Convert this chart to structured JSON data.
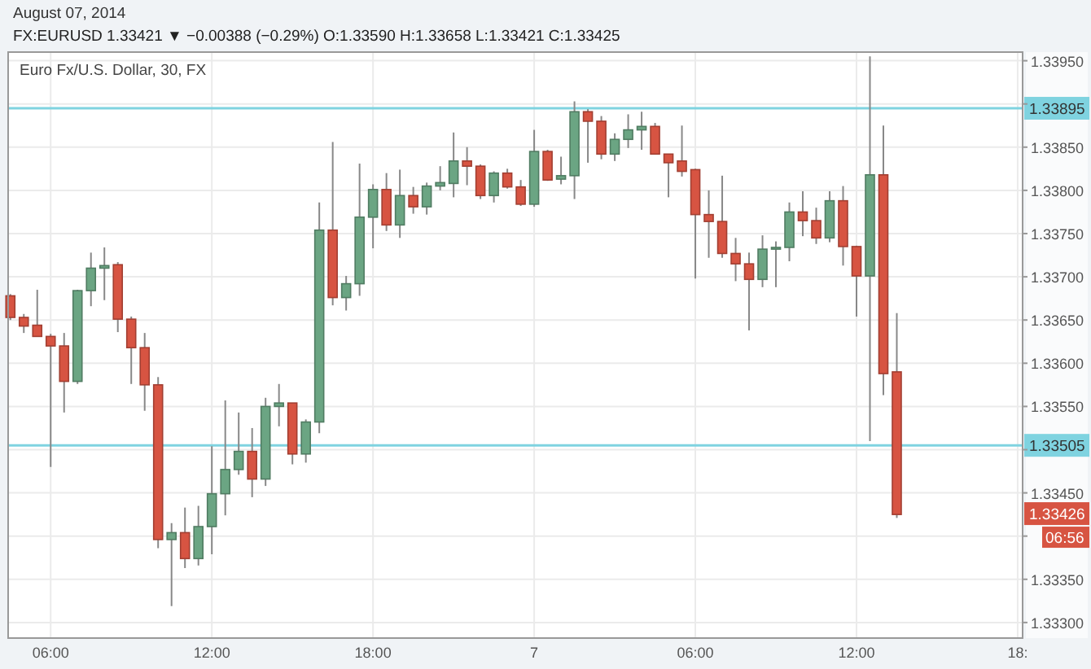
{
  "chart_data": {
    "type": "candlestick",
    "title": "Euro Fx/U.S. Dollar, 30, FX",
    "subtitle": "FX:EURUSD 1.33421 ▼ −0.00388 (−0.29%) O:1.33590 H:1.33658 L:1.33421 C:1.33425",
    "annotations": [
      "August 07, 2014",
      "06:56",
      {
        "text": "1.33426",
        "y": 1.33426
      }
    ],
    "x": [
      "2014-08-06T04:30",
      "2014-08-06T05:00",
      "2014-08-06T05:30",
      "2014-08-06T06:00",
      "2014-08-06T06:30",
      "2014-08-06T07:00",
      "2014-08-06T07:30",
      "2014-08-06T08:00",
      "2014-08-06T08:30",
      "2014-08-06T09:00",
      "2014-08-06T09:30",
      "2014-08-06T10:00",
      "2014-08-06T10:30",
      "2014-08-06T11:00",
      "2014-08-06T11:30",
      "2014-08-06T12:00",
      "2014-08-06T12:30",
      "2014-08-06T13:00",
      "2014-08-06T13:30",
      "2014-08-06T14:00",
      "2014-08-06T14:30",
      "2014-08-06T15:00",
      "2014-08-06T15:30",
      "2014-08-06T16:00",
      "2014-08-06T16:30",
      "2014-08-06T17:00",
      "2014-08-06T17:30",
      "2014-08-06T18:00",
      "2014-08-06T18:30",
      "2014-08-06T19:00",
      "2014-08-06T19:30",
      "2014-08-06T20:00",
      "2014-08-06T20:30",
      "2014-08-06T21:00",
      "2014-08-06T21:30",
      "2014-08-06T22:00",
      "2014-08-06T22:30",
      "2014-08-06T23:00",
      "2014-08-06T23:30",
      "2014-08-07T00:00",
      "2014-08-07T00:30",
      "2014-08-07T01:00",
      "2014-08-07T01:30",
      "2014-08-07T02:00",
      "2014-08-07T02:30",
      "2014-08-07T03:00",
      "2014-08-07T03:30",
      "2014-08-07T04:00",
      "2014-08-07T04:30",
      "2014-08-07T05:00",
      "2014-08-07T05:30",
      "2014-08-07T06:00",
      "2014-08-07T06:30",
      "2014-08-07T07:00",
      "2014-08-07T07:30",
      "2014-08-07T08:00",
      "2014-08-07T08:30",
      "2014-08-07T09:00",
      "2014-08-07T09:30",
      "2014-08-07T10:00",
      "2014-08-07T10:30",
      "2014-08-07T11:00",
      "2014-08-07T11:30",
      "2014-08-07T12:00",
      "2014-08-07T12:30",
      "2014-08-07T13:00",
      "2014-08-07T13:30"
    ],
    "ohlc": [
      [
        1.33678,
        1.3368,
        1.3365,
        1.33653
      ],
      [
        1.33653,
        1.33657,
        1.33635,
        1.33643
      ],
      [
        1.33644,
        1.33685,
        1.33631,
        1.33631
      ],
      [
        1.33631,
        1.33634,
        1.3348,
        1.3362
      ],
      [
        1.3362,
        1.33635,
        1.33543,
        1.33579
      ],
      [
        1.33579,
        1.33685,
        1.33576,
        1.33684
      ],
      [
        1.33684,
        1.33728,
        1.33666,
        1.3371
      ],
      [
        1.3371,
        1.33734,
        1.33673,
        1.33713
      ],
      [
        1.33714,
        1.33717,
        1.33636,
        1.33651
      ],
      [
        1.33651,
        1.33654,
        1.33576,
        1.33618
      ],
      [
        1.33618,
        1.33635,
        1.33545,
        1.33575
      ],
      [
        1.33575,
        1.33584,
        1.33386,
        1.33396
      ],
      [
        1.33396,
        1.33415,
        1.33319,
        1.33404
      ],
      [
        1.33404,
        1.33433,
        1.33363,
        1.33374
      ],
      [
        1.33374,
        1.33435,
        1.33366,
        1.33411
      ],
      [
        1.33411,
        1.33504,
        1.33379,
        1.33449
      ],
      [
        1.33449,
        1.33557,
        1.33424,
        1.33477
      ],
      [
        1.33477,
        1.33543,
        1.33471,
        1.33498
      ],
      [
        1.33498,
        1.33525,
        1.33445,
        1.33466
      ],
      [
        1.33466,
        1.3356,
        1.33458,
        1.3355
      ],
      [
        1.3355,
        1.33576,
        1.33527,
        1.33554
      ],
      [
        1.33554,
        1.33554,
        1.33483,
        1.33495
      ],
      [
        1.33495,
        1.33535,
        1.33485,
        1.33532
      ],
      [
        1.33532,
        1.33786,
        1.33519,
        1.33754
      ],
      [
        1.33754,
        1.33856,
        1.33667,
        1.33676
      ],
      [
        1.33676,
        1.33701,
        1.33661,
        1.33692
      ],
      [
        1.33692,
        1.33831,
        1.33678,
        1.33769
      ],
      [
        1.33769,
        1.33807,
        1.33733,
        1.33801
      ],
      [
        1.33801,
        1.3382,
        1.33753,
        1.3376
      ],
      [
        1.3376,
        1.33824,
        1.33745,
        1.33794
      ],
      [
        1.33794,
        1.33804,
        1.33773,
        1.33781
      ],
      [
        1.33781,
        1.33809,
        1.33772,
        1.33805
      ],
      [
        1.33805,
        1.33828,
        1.338,
        1.33809
      ],
      [
        1.33808,
        1.33867,
        1.33792,
        1.33834
      ],
      [
        1.33834,
        1.3385,
        1.33806,
        1.33828
      ],
      [
        1.33828,
        1.3383,
        1.3379,
        1.33794
      ],
      [
        1.33794,
        1.33822,
        1.33786,
        1.3382
      ],
      [
        1.3382,
        1.33825,
        1.33802,
        1.33804
      ],
      [
        1.33804,
        1.33812,
        1.33782,
        1.33784
      ],
      [
        1.33784,
        1.3387,
        1.33781,
        1.33845
      ],
      [
        1.33845,
        1.33847,
        1.33811,
        1.33812
      ],
      [
        1.33813,
        1.33839,
        1.33807,
        1.33817
      ],
      [
        1.33817,
        1.33903,
        1.3379,
        1.33891
      ],
      [
        1.33891,
        1.33894,
        1.33832,
        1.3388
      ],
      [
        1.3388,
        1.33886,
        1.33836,
        1.33842
      ],
      [
        1.33842,
        1.33866,
        1.33834,
        1.33859
      ],
      [
        1.33859,
        1.33888,
        1.33849,
        1.3387
      ],
      [
        1.3387,
        1.33891,
        1.33847,
        1.33874
      ],
      [
        1.33874,
        1.33878,
        1.33842,
        1.33842
      ],
      [
        1.33842,
        1.33842,
        1.33792,
        1.33832
      ],
      [
        1.33834,
        1.33875,
        1.33816,
        1.33822
      ],
      [
        1.33824,
        1.33825,
        1.33698,
        1.33772
      ],
      [
        1.33772,
        1.338,
        1.33722,
        1.33764
      ],
      [
        1.33764,
        1.33817,
        1.33722,
        1.33727
      ],
      [
        1.33727,
        1.33745,
        1.33695,
        1.33715
      ],
      [
        1.33715,
        1.33728,
        1.33638,
        1.33697
      ],
      [
        1.33697,
        1.33748,
        1.33688,
        1.33732
      ],
      [
        1.33732,
        1.33741,
        1.33688,
        1.33734
      ],
      [
        1.33734,
        1.33786,
        1.33718,
        1.33775
      ],
      [
        1.33775,
        1.33799,
        1.33747,
        1.33765
      ],
      [
        1.33765,
        1.3378,
        1.33738,
        1.33745
      ],
      [
        1.33745,
        1.33799,
        1.3374,
        1.33788
      ],
      [
        1.33788,
        1.33805,
        1.33713,
        1.33735
      ],
      [
        1.33735,
        1.33736,
        1.33654,
        1.33701
      ],
      [
        1.33701,
        1.33955,
        1.3351,
        1.33818
      ],
      [
        1.33818,
        1.33875,
        1.33563,
        1.33588
      ],
      [
        1.3359,
        1.33658,
        1.33421,
        1.33425
      ]
    ],
    "colors": [
      "#d75442",
      "#d75442",
      "#d75442",
      "#d75442",
      "#d75442",
      "#6ba583",
      "#6ba583",
      "#6ba583",
      "#d75442",
      "#d75442",
      "#d75442",
      "#d75442",
      "#6ba583",
      "#d75442",
      "#6ba583",
      "#6ba583",
      "#6ba583",
      "#6ba583",
      "#d75442",
      "#6ba583",
      "#6ba583",
      "#d75442",
      "#6ba583",
      "#6ba583",
      "#d75442",
      "#6ba583",
      "#6ba583",
      "#6ba583",
      "#d75442",
      "#6ba583",
      "#d75442",
      "#6ba583",
      "#6ba583",
      "#6ba583",
      "#d75442",
      "#d75442",
      "#6ba583",
      "#d75442",
      "#d75442",
      "#6ba583",
      "#d75442",
      "#6ba583",
      "#6ba583",
      "#d75442",
      "#d75442",
      "#6ba583",
      "#6ba583",
      "#6ba583",
      "#d75442",
      "#d75442",
      "#d75442",
      "#d75442",
      "#d75442",
      "#d75442",
      "#d75442",
      "#d75442",
      "#6ba583",
      "#6ba583",
      "#6ba583",
      "#d75442",
      "#d75442",
      "#6ba583",
      "#d75442",
      "#d75442",
      "#6ba583",
      "#d75442",
      "#d75442"
    ],
    "xlim": [
      "2014-08-06T04:25",
      "2014-08-07T18:11"
    ],
    "xticks": [
      {
        "value": "2014-08-06T06:00",
        "label": "06:00"
      },
      {
        "value": "2014-08-06T12:00",
        "label": "12:00"
      },
      {
        "value": "2014-08-06T18:00",
        "label": "18:00"
      },
      {
        "value": "2014-08-07T00:00",
        "label": "7"
      },
      {
        "value": "2014-08-07T06:00",
        "label": "06:00"
      },
      {
        "value": "2014-08-07T12:00",
        "label": "12:00"
      },
      {
        "value": "2014-08-07T18:00",
        "label": "18:"
      }
    ],
    "ylim": [
      1.33282,
      1.3396
    ],
    "yticks": [
      {
        "value": 1.333,
        "label": "1.33300"
      },
      {
        "value": 1.3335,
        "label": "1.33350"
      },
      {
        "value": 1.334,
        "label": null
      },
      {
        "value": 1.3345,
        "label": "1.33450"
      },
      {
        "value": 1.335,
        "label": null
      },
      {
        "value": 1.3355,
        "label": "1.33550"
      },
      {
        "value": 1.336,
        "label": "1.33600"
      },
      {
        "value": 1.3365,
        "label": "1.33650"
      },
      {
        "value": 1.337,
        "label": "1.33700"
      },
      {
        "value": 1.3375,
        "label": "1.33750"
      },
      {
        "value": 1.338,
        "label": "1.33800"
      },
      {
        "value": 1.3385,
        "label": "1.33850"
      },
      {
        "value": 1.339,
        "label": null
      },
      {
        "value": 1.3395,
        "label": "1.33950"
      }
    ],
    "grid": true,
    "ref_lines": [
      {
        "axis": "y",
        "value": 1.33895,
        "label": "1.33895",
        "color": "#7fd3e0"
      },
      {
        "axis": "y",
        "value": 1.33505,
        "label": "1.33505",
        "color": "#7fd3e0"
      }
    ]
  }
}
